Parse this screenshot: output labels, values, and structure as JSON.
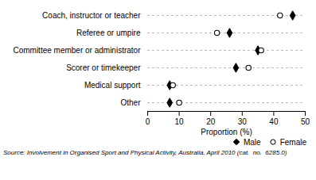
{
  "chart_data": {
    "type": "dot",
    "orientation": "horizontal",
    "categories": [
      "Coach, instructor or teacher",
      "Referee or umpire",
      "Committee member or administrator",
      "Scorer or timekeeper",
      "Medical support",
      "Other"
    ],
    "series": [
      {
        "name": "Male",
        "color": "#000000",
        "marker": "diamond",
        "values": [
          46,
          26,
          35,
          28,
          7,
          7
        ]
      },
      {
        "name": "Female",
        "color": "#000000",
        "marker": "circle",
        "values": [
          42,
          22,
          36,
          32,
          8,
          10
        ]
      }
    ],
    "xlabel": "Proportion (%)",
    "xlim": [
      0,
      50
    ],
    "xticks": [
      0,
      10,
      20,
      30,
      40,
      50
    ],
    "grid": true,
    "legend": "lower right",
    "caption": "Source: Involvement in Organised Sport and Physical Activity, Australia, April 2010 (cat.  no.  6285.0)"
  }
}
